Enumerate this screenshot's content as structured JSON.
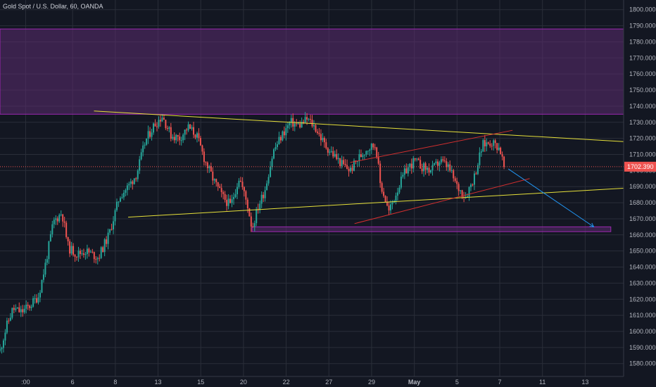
{
  "title": "Gold Spot / U.S. Dollar, 60, OANDA",
  "colors": {
    "background": "#131722",
    "grid": "#2a2e39",
    "up": "#26a69a",
    "down": "#ef5350",
    "axis_text": "#b2b5be",
    "zone_fill": "#5b2c6f",
    "zone_stroke": "#9c27b0",
    "trendline": "#e6e03a",
    "channel": "#d32f2f",
    "projection": "#2196f3",
    "price_tag": "#ef5350"
  },
  "chart_data": {
    "type": "candlestick",
    "symbol": "Gold Spot / U.S. Dollar",
    "interval": "60",
    "source": "OANDA",
    "ylim": [
      1572,
      1806
    ],
    "y_ticks": [
      1800,
      1790,
      1780,
      1770,
      1760,
      1750,
      1740,
      1730,
      1720,
      1710,
      1700,
      1690,
      1680,
      1670,
      1660,
      1650,
      1640,
      1630,
      1620,
      1610,
      1600,
      1590,
      1580
    ],
    "y_tick_labels": [
      "1800.000",
      "1790.000",
      "1780.000",
      "1770.000",
      "1760.000",
      "1750.000",
      "1740.000",
      "1730.000",
      "1720.000",
      "1710.000",
      "1700.000",
      "1690.000",
      "1680.000",
      "1670.000",
      "1660.000",
      "1650.000",
      "1640.000",
      "1630.000",
      "1620.000",
      "1610.000",
      "1600.000",
      "1590.000",
      "1580.000"
    ],
    "x_axis": {
      "start_label": ":00",
      "label_day_range": [
        2.0,
        16.6
      ]
    },
    "x_tick_labels": [
      {
        "label": ":00",
        "day": 2.6
      },
      {
        "label": "6",
        "day": 3.7
      },
      {
        "label": "8",
        "day": 4.7
      },
      {
        "label": "13",
        "day": 5.7
      },
      {
        "label": "15",
        "day": 6.7
      },
      {
        "label": "20",
        "day": 7.7
      },
      {
        "label": "22",
        "day": 8.7
      },
      {
        "label": "27",
        "day": 9.7
      },
      {
        "label": "29",
        "day": 10.7
      },
      {
        "label": "May",
        "day": 11.7
      },
      {
        "label": "5",
        "day": 12.7
      },
      {
        "label": "7",
        "day": 13.7
      },
      {
        "label": "11",
        "day": 14.7
      },
      {
        "label": "13",
        "day": 15.7
      }
    ],
    "price_path": [
      [
        2.0,
        1588
      ],
      [
        2.15,
        1603
      ],
      [
        2.3,
        1614
      ],
      [
        2.5,
        1612
      ],
      [
        2.7,
        1616
      ],
      [
        2.9,
        1622
      ],
      [
        3.05,
        1640
      ],
      [
        3.25,
        1668
      ],
      [
        3.45,
        1674
      ],
      [
        3.6,
        1652
      ],
      [
        3.8,
        1648
      ],
      [
        4.0,
        1650
      ],
      [
        4.3,
        1646
      ],
      [
        4.55,
        1660
      ],
      [
        4.8,
        1684
      ],
      [
        5.0,
        1690
      ],
      [
        5.2,
        1698
      ],
      [
        5.4,
        1718
      ],
      [
        5.6,
        1728
      ],
      [
        5.8,
        1734
      ],
      [
        6.0,
        1722
      ],
      [
        6.2,
        1720
      ],
      [
        6.4,
        1727
      ],
      [
        6.6,
        1722
      ],
      [
        6.8,
        1706
      ],
      [
        7.0,
        1694
      ],
      [
        7.2,
        1684
      ],
      [
        7.4,
        1678
      ],
      [
        7.6,
        1696
      ],
      [
        7.8,
        1678
      ],
      [
        7.9,
        1664
      ],
      [
        8.05,
        1678
      ],
      [
        8.2,
        1688
      ],
      [
        8.4,
        1712
      ],
      [
        8.6,
        1722
      ],
      [
        8.8,
        1730
      ],
      [
        9.0,
        1728
      ],
      [
        9.2,
        1732
      ],
      [
        9.4,
        1726
      ],
      [
        9.6,
        1716
      ],
      [
        9.8,
        1710
      ],
      [
        10.0,
        1704
      ],
      [
        10.2,
        1700
      ],
      [
        10.4,
        1708
      ],
      [
        10.6,
        1714
      ],
      [
        10.8,
        1716
      ],
      [
        10.9,
        1692
      ],
      [
        11.0,
        1684
      ],
      [
        11.1,
        1674
      ],
      [
        11.3,
        1688
      ],
      [
        11.5,
        1700
      ],
      [
        11.7,
        1706
      ],
      [
        11.9,
        1702
      ],
      [
        12.1,
        1700
      ],
      [
        12.3,
        1706
      ],
      [
        12.5,
        1702
      ],
      [
        12.7,
        1690
      ],
      [
        12.9,
        1684
      ],
      [
        13.1,
        1696
      ],
      [
        13.3,
        1716
      ],
      [
        13.5,
        1718
      ],
      [
        13.7,
        1714
      ],
      [
        13.8,
        1702
      ]
    ],
    "zones": [
      {
        "name": "upper-resistance-zone",
        "day0": 2.0,
        "day1": 16.6,
        "y_low": 1735,
        "y_high": 1788
      },
      {
        "name": "support-zone",
        "day0": 7.9,
        "day1": 16.3,
        "y_low": 1662,
        "y_high": 1665
      }
    ],
    "trendlines": [
      {
        "name": "upper-trendline",
        "color": "trendline",
        "from": [
          4.2,
          1737
        ],
        "to": [
          16.6,
          1718
        ]
      },
      {
        "name": "lower-trendline",
        "color": "trendline",
        "from": [
          5.0,
          1671
        ],
        "to": [
          16.6,
          1689
        ]
      },
      {
        "name": "channel-upper",
        "color": "channel",
        "from": [
          10.2,
          1705
        ],
        "to": [
          14.0,
          1725
        ]
      },
      {
        "name": "channel-lower",
        "color": "channel",
        "from": [
          10.3,
          1667
        ],
        "to": [
          14.4,
          1695
        ]
      },
      {
        "name": "projection-arrow",
        "color": "projection",
        "from": [
          13.9,
          1701
        ],
        "to": [
          15.9,
          1665
        ]
      }
    ],
    "last_price": 1702.39,
    "last_price_label": "1702.390"
  }
}
